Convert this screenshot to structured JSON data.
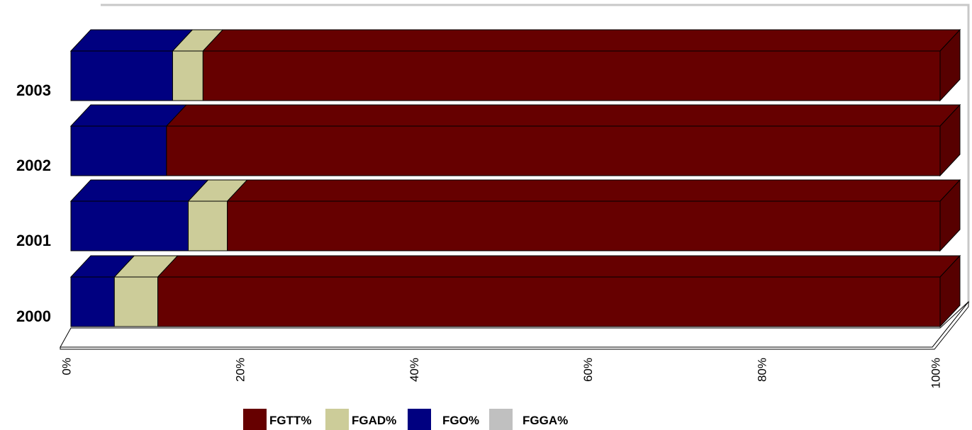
{
  "chart_data": {
    "type": "bar",
    "orientation": "horizontal",
    "stacked": "percent",
    "three_d": true,
    "categories": [
      "2000",
      "2001",
      "2002",
      "2003"
    ],
    "series": [
      {
        "name": "FGO%",
        "color": "#000080",
        "values": [
          5.0,
          13.5,
          11.0,
          11.7
        ]
      },
      {
        "name": "FGAD%",
        "color": "#CCCC99",
        "values": [
          5.0,
          4.5,
          0.0,
          3.5
        ]
      },
      {
        "name": "FGGA%",
        "color": "#C0C0C0",
        "values": [
          0.0,
          0.0,
          0.0,
          0.0
        ]
      },
      {
        "name": "FGTT%",
        "color": "#660000",
        "values": [
          90.0,
          82.0,
          89.0,
          84.8
        ]
      }
    ],
    "xticks": [
      "0%",
      "20%",
      "40%",
      "60%",
      "80%",
      "100%"
    ],
    "xlim": [
      0,
      100
    ],
    "legend_order": [
      "FGTT%",
      "FGAD%",
      "FGO%",
      "FGGA%"
    ],
    "legend_position": "bottom",
    "grid": false
  }
}
